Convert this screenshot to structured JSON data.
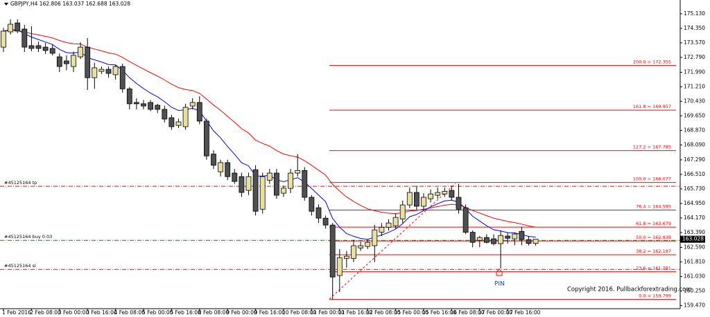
{
  "chart_data": {
    "type": "candlestick",
    "title": "GBPJPY,H4  162.806 163.037 162.688 163.028",
    "categories": [
      "1 Feb 2016",
      null,
      null,
      null,
      "2 Feb 08:00",
      null,
      null,
      null,
      "3 Feb 00:00",
      null,
      null,
      null,
      "3 Feb 16:00",
      null,
      null,
      null,
      "4 Feb 08:00",
      null,
      null,
      null,
      "5 Feb 00:00",
      null,
      null,
      null,
      "5 Feb 16:00",
      null,
      null,
      null,
      "8 Feb 08:00",
      null,
      null,
      null,
      "9 Feb 00:00",
      null,
      null,
      null,
      "9 Feb 16:00",
      null,
      null,
      null,
      "10 Feb 08:00",
      null,
      null,
      null,
      "11 Feb 00:00",
      null,
      null,
      null,
      "11 Feb 16:00",
      null,
      null,
      null,
      "12 Feb 08:00",
      null,
      null,
      null,
      "15 Feb 00:00",
      null,
      null,
      null,
      "15 Feb 16:00",
      null,
      null,
      null,
      "16 Feb 08:00",
      null,
      null,
      null,
      "17 Feb 00:00",
      null,
      null,
      null,
      "17 Feb 16:00",
      null,
      null,
      null,
      null
    ],
    "open": [
      173.34,
      174.16,
      174.64,
      174.31,
      173.42,
      173.42,
      173.34,
      173.27,
      172.82,
      172.6,
      172.3,
      172.82,
      173.34,
      171.7,
      172.04,
      172.15,
      171.86,
      172.3,
      171.1,
      170.37,
      170.3,
      170.37,
      170.22,
      170.0,
      169.55,
      169.14,
      169.07,
      170.18,
      170.37,
      169.37,
      167.6,
      166.65,
      167.14,
      166.58,
      166.39,
      165.65,
      166.76,
      164.64,
      166.2,
      166.58,
      165.5,
      165.76,
      166.58,
      166.72,
      165.28,
      164.72,
      164.16,
      163.79,
      161.08,
      162.0,
      162.0,
      162.56,
      162.64,
      162.68,
      163.41,
      163.67,
      163.75,
      164.12,
      164.87,
      165.54,
      164.8,
      165.2,
      165.39,
      165.46,
      165.65,
      165.28,
      164.72,
      163.4,
      162.97,
      163.12,
      163.05,
      162.79,
      163.2,
      163.05,
      163.45,
      163.01,
      162.806
    ],
    "high": [
      174.38,
      174.83,
      174.83,
      174.53,
      174.46,
      173.64,
      173.57,
      173.5,
      173.0,
      172.9,
      173.1,
      173.6,
      173.83,
      172.5,
      172.3,
      172.3,
      172.4,
      172.45,
      171.2,
      170.6,
      170.5,
      170.5,
      170.3,
      170.2,
      169.7,
      169.5,
      170.3,
      170.6,
      170.7,
      169.5,
      167.8,
      167.3,
      167.3,
      166.8,
      166.6,
      166.6,
      167.0,
      166.6,
      166.8,
      166.8,
      165.9,
      166.8,
      167.6,
      166.9,
      165.4,
      164.9,
      164.3,
      163.9,
      162.5,
      162.4,
      163.0,
      162.9,
      163.0,
      163.8,
      163.9,
      164.1,
      164.4,
      165.1,
      165.8,
      165.9,
      165.5,
      165.7,
      165.8,
      165.8,
      165.9,
      166.0,
      164.9,
      163.5,
      163.2,
      163.3,
      163.3,
      163.5,
      163.4,
      163.4,
      163.7,
      163.2,
      163.037
    ],
    "low": [
      173.08,
      174.01,
      174.09,
      173.08,
      173.12,
      173.08,
      172.97,
      172.9,
      172.0,
      172.1,
      172.0,
      172.7,
      171.04,
      171.1,
      171.9,
      171.7,
      171.6,
      170.9,
      170.0,
      170.0,
      170.0,
      169.9,
      169.8,
      169.3,
      168.9,
      169.0,
      168.9,
      170.0,
      169.2,
      167.3,
      166.8,
      166.4,
      166.2,
      166.0,
      165.3,
      165.4,
      164.3,
      164.4,
      166.0,
      165.2,
      165.3,
      165.5,
      166.4,
      165.1,
      164.3,
      163.9,
      163.6,
      159.8,
      160.2,
      161.5,
      161.8,
      162.4,
      162.5,
      161.8,
      163.2,
      163.5,
      163.6,
      163.9,
      164.7,
      164.6,
      164.6,
      165.0,
      165.2,
      165.3,
      165.1,
      164.4,
      163.3,
      162.6,
      162.6,
      162.8,
      162.7,
      161.45,
      162.8,
      162.7,
      162.7,
      162.7,
      162.688
    ],
    "close": [
      174.2,
      174.57,
      174.2,
      173.34,
      173.27,
      173.27,
      173.16,
      173.01,
      172.3,
      172.45,
      172.9,
      173.34,
      171.7,
      172.23,
      172.15,
      171.93,
      172.3,
      171.1,
      170.3,
      170.3,
      170.18,
      170.0,
      170.0,
      169.48,
      169.07,
      169.33,
      170.11,
      170.37,
      169.37,
      167.5,
      167.0,
      167.14,
      166.39,
      166.13,
      165.54,
      166.39,
      164.53,
      166.39,
      166.58,
      165.39,
      165.77,
      166.58,
      166.72,
      165.28,
      164.53,
      164.16,
      163.79,
      161.0,
      162.04,
      162.12,
      162.68,
      162.68,
      162.86,
      163.53,
      163.67,
      163.9,
      164.2,
      164.87,
      165.54,
      164.8,
      165.28,
      165.46,
      165.54,
      165.6,
      165.28,
      164.64,
      163.4,
      162.86,
      163.12,
      162.86,
      162.79,
      163.23,
      163.08,
      163.31,
      163.01,
      162.8,
      163.028
    ],
    "up_color": "#e8e0a0",
    "down_color": "#505050",
    "ylim": [
      159.3,
      175.87
    ],
    "yticks": [
      {
        "value": 175.13,
        "label": "175.130"
      },
      {
        "value": 174.35,
        "label": "174.350"
      },
      {
        "value": 173.57,
        "label": "173.570"
      },
      {
        "value": 172.79,
        "label": "172.790"
      },
      {
        "value": 171.99,
        "label": "171.990"
      },
      {
        "value": 171.21,
        "label": "171.210"
      },
      {
        "value": 170.43,
        "label": "170.430"
      },
      {
        "value": 169.65,
        "label": "169.650"
      },
      {
        "value": 168.87,
        "label": "168.870"
      },
      {
        "value": 168.09,
        "label": "168.090"
      },
      {
        "value": 167.29,
        "label": "167.290"
      },
      {
        "value": 166.51,
        "label": "166.510"
      },
      {
        "value": 165.73,
        "label": "165.730"
      },
      {
        "value": 164.95,
        "label": "164.950"
      },
      {
        "value": 164.17,
        "label": "164.170"
      },
      {
        "value": 163.39,
        "label": "163.390"
      },
      {
        "value": 162.59,
        "label": "162.590"
      },
      {
        "value": 161.81,
        "label": "161.810"
      },
      {
        "value": 161.03,
        "label": "161.030"
      },
      {
        "value": 160.25,
        "label": "160.250"
      },
      {
        "value": 159.47,
        "label": "159.470"
      }
    ],
    "last_price": {
      "value": 163.028,
      "label": "163.028"
    },
    "fib_levels": [
      {
        "value": 172.355,
        "label": "200.0 = 172.355"
      },
      {
        "value": 169.957,
        "label": "161.8 = 169.957"
      },
      {
        "value": 167.785,
        "label": "127.2 = 167.785"
      },
      {
        "value": 166.077,
        "label": "100.0 = 166.077"
      },
      {
        "value": 164.595,
        "label": "76.4 = 164.595"
      },
      {
        "value": 163.679,
        "label": "61.8 = 163.679"
      },
      {
        "value": 162.938,
        "label": "50.0 = 162.938"
      },
      {
        "value": 162.197,
        "label": "38.2 = 162.197"
      },
      {
        "value": 161.281,
        "label": "23.6 = 161.281"
      },
      {
        "value": 159.799,
        "label": "0.0 = 159.799"
      }
    ],
    "fib_color": "#ff0000",
    "orders": [
      {
        "value": 165.87,
        "label": "#45125164 tp",
        "color": "#ff0000"
      },
      {
        "value": 162.97,
        "label": "#45125164 buy 0.03",
        "color": "#008800"
      },
      {
        "value": 161.41,
        "label": "#45125164 sl",
        "color": "#ff0000"
      }
    ],
    "annotations": [
      "PIN",
      "Copyright 2016. Pullbackforextrading.com"
    ]
  }
}
